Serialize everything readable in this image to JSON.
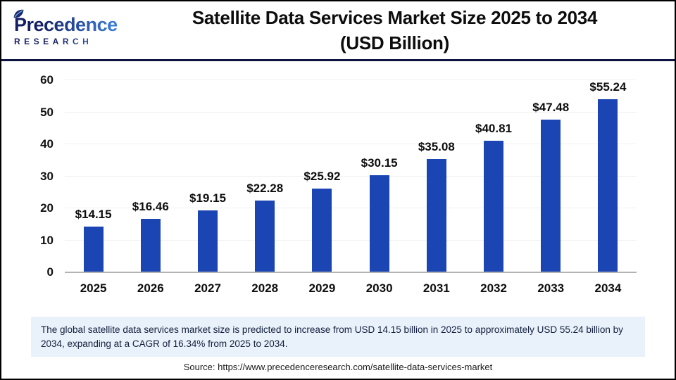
{
  "logo": {
    "brand": "Precedence",
    "sub": "RESEARCH"
  },
  "header": {
    "title_line1": "Satellite Data Services Market Size 2025 to 2034",
    "title_line2": "(USD Billion)"
  },
  "chart_data": {
    "type": "bar",
    "title": "Satellite Data Services Market Size 2025 to 2034 (USD Billion)",
    "categories": [
      "2025",
      "2026",
      "2027",
      "2028",
      "2029",
      "2030",
      "2031",
      "2032",
      "2033",
      "2034"
    ],
    "values": [
      14.15,
      16.46,
      19.15,
      22.28,
      25.92,
      30.15,
      35.08,
      40.81,
      47.48,
      55.24
    ],
    "value_labels": [
      "$14.15",
      "$16.46",
      "$19.15",
      "$22.28",
      "$25.92",
      "$30.15",
      "$35.08",
      "$40.81",
      "$47.48",
      "$55.24"
    ],
    "xlabel": "",
    "ylabel": "",
    "ylim": [
      0,
      60
    ],
    "yticks": [
      0,
      10,
      20,
      30,
      40,
      50,
      60
    ],
    "bar_color": "#1b45b3",
    "grid": "horizontal",
    "legend": "none"
  },
  "summary": {
    "text": "The global satellite data services market size is predicted to increase from USD 14.15 billion in 2025 to approximately USD 55.24 billion by 2034, expanding at a CAGR of 16.34% from 2025 to 2034."
  },
  "source": {
    "text": "Source: https://www.precedenceresearch.com/satellite-data-services-market"
  }
}
